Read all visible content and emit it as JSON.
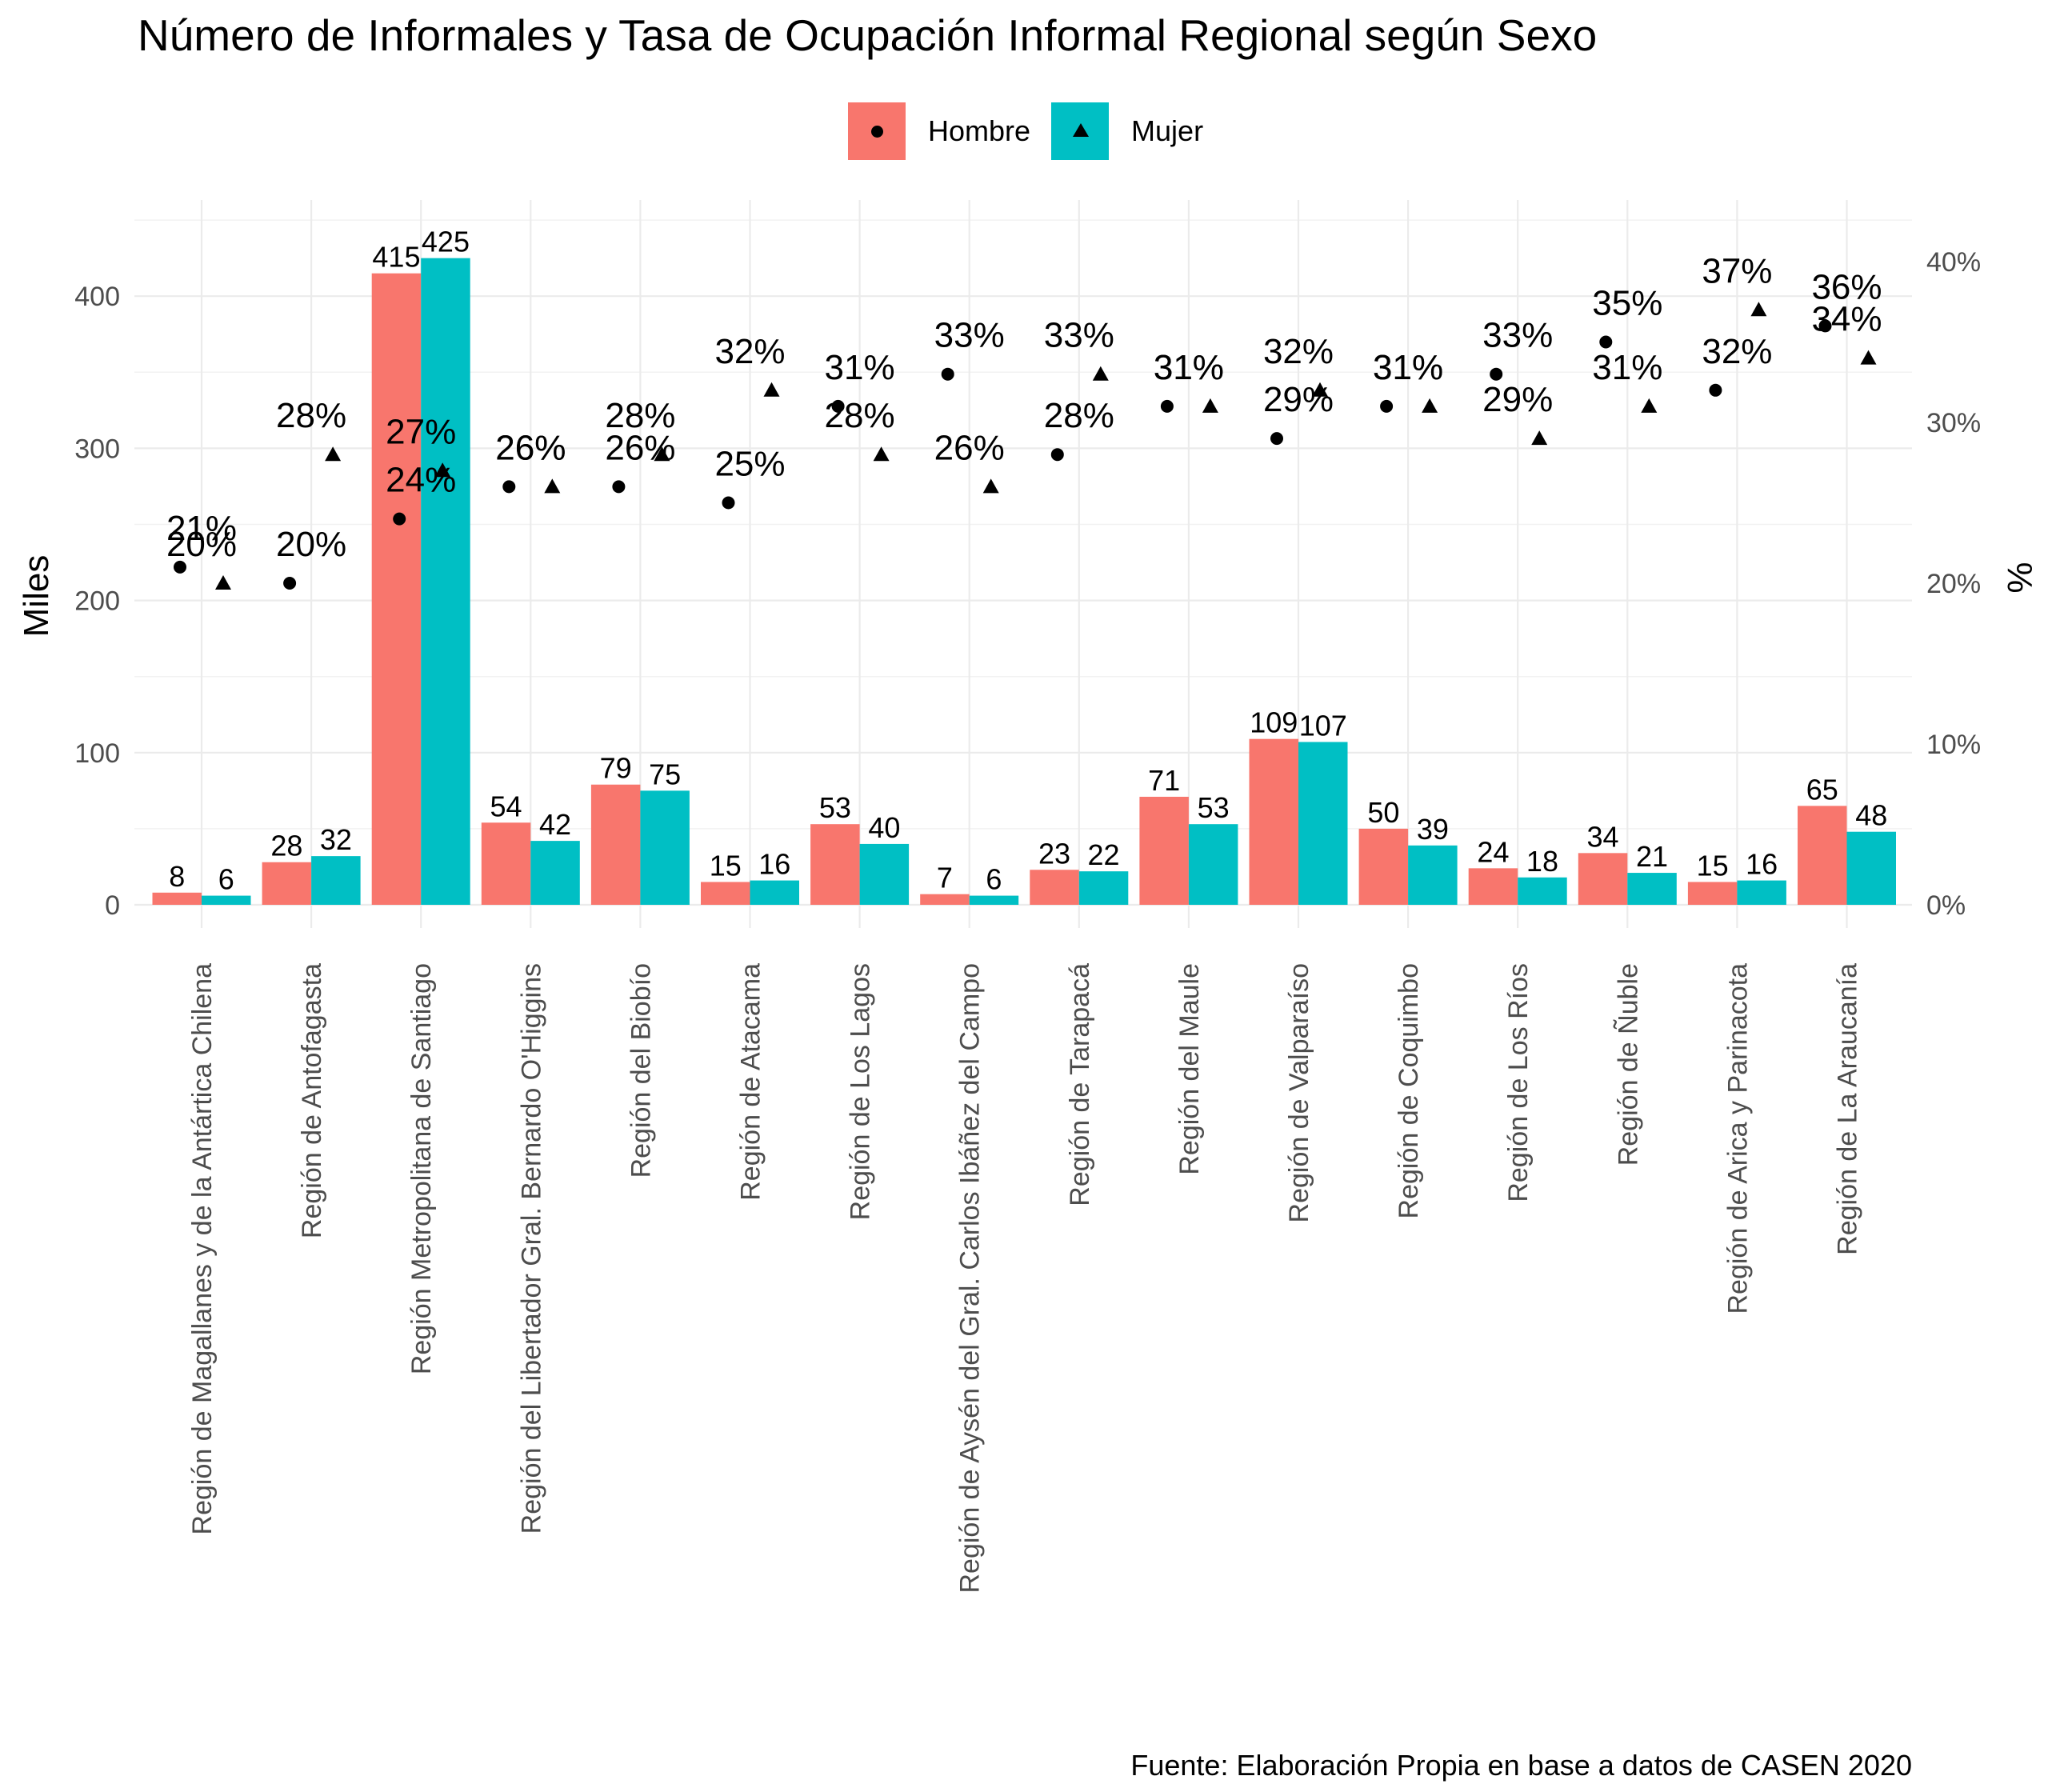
{
  "chart_data": {
    "type": "bar",
    "title": "Número de Informales y Tasa de Ocupación Informal Regional según Sexo",
    "caption": "Fuente: Elaboración Propia en base a datos de CASEN 2020",
    "ylabel": "Miles",
    "y2label": "%",
    "ylim": [
      0,
      450
    ],
    "y2lim": [
      0,
      45
    ],
    "yticks": [
      0,
      100,
      200,
      300,
      400
    ],
    "y2ticks": [
      "0%",
      "10%",
      "20%",
      "30%",
      "40%"
    ],
    "legend": [
      {
        "name": "Hombre",
        "color": "#F8766D",
        "symbol": "circle"
      },
      {
        "name": "Mujer",
        "color": "#00BFC4",
        "symbol": "triangle"
      }
    ],
    "categories": [
      "Región de Magallanes y de la Antártica Chilena",
      "Región de Antofagasta",
      "Región Metropolitana de Santiago",
      "Región del Libertador Gral. Bernardo O'Higgins",
      "Región del Biobío",
      "Región de Atacama",
      "Región de Los Lagos",
      "Región de Aysén del Gral. Carlos Ibáñez del Campo",
      "Región de Tarapacá",
      "Región del Maule",
      "Región de Valparaíso",
      "Región de Coquimbo",
      "Región de Los Ríos",
      "Región de Ñuble",
      "Región de Arica y Parinacota",
      "Región de La Araucanía"
    ],
    "series": [
      {
        "name": "Hombre",
        "values": [
          8,
          28,
          415,
          54,
          79,
          15,
          53,
          7,
          23,
          71,
          109,
          50,
          24,
          34,
          15,
          65
        ],
        "rate_values": [
          21,
          20,
          24,
          26,
          26,
          25,
          31,
          33,
          28,
          31,
          29,
          31,
          33,
          35,
          32,
          36
        ],
        "rate_labels": [
          "21%",
          "20%",
          "24%",
          "26%",
          "26%",
          "25%",
          "31%",
          "33%",
          "28%",
          "31%",
          "29%",
          "31%",
          "33%",
          "35%",
          "32%",
          "36%"
        ]
      },
      {
        "name": "Mujer",
        "values": [
          6,
          32,
          425,
          42,
          75,
          16,
          40,
          6,
          22,
          53,
          107,
          39,
          18,
          21,
          16,
          48
        ],
        "rate_values": [
          20,
          28,
          27,
          26,
          28,
          32,
          28,
          26,
          33,
          31,
          32,
          31,
          29,
          31,
          37,
          34
        ],
        "rate_labels": [
          "20%",
          "28%",
          "27%",
          "26%",
          "28%",
          "32%",
          "28%",
          "26%",
          "33%",
          "31%",
          "32%",
          "31%",
          "29%",
          "31%",
          "37%",
          "34%"
        ]
      }
    ]
  }
}
